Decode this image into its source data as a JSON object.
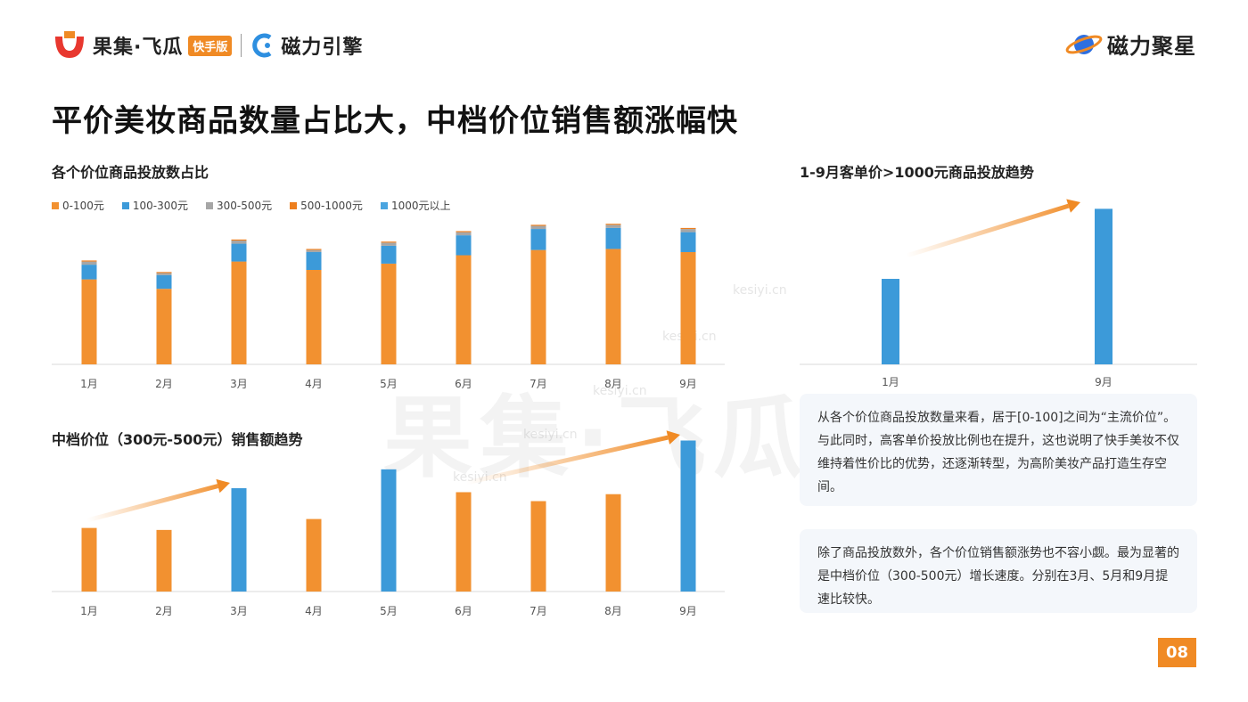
{
  "header": {
    "brand1": "果集·飞瓜",
    "brand1_tag": "快手版",
    "brand2": "磁力引擎",
    "brand3": "磁力聚星"
  },
  "title": "平价美妆商品数量占比大，中档价位销售额涨幅快",
  "watermark": {
    "big": "果集·飞瓜",
    "small": "kesiyi.cn"
  },
  "colors": {
    "orange": "#f29130",
    "blue": "#3c9ad9",
    "gray": "#a6a6a6",
    "orange2": "#ee7f1e",
    "blue2": "#4aa5e0"
  },
  "chart_data": [
    {
      "type": "bar",
      "title": "各个价位商品投放数占比",
      "stacked": true,
      "categories": [
        "1月",
        "2月",
        "3月",
        "4月",
        "5月",
        "6月",
        "7月",
        "8月",
        "9月"
      ],
      "series": [
        {
          "name": "0-100元",
          "color": "#f29130",
          "values": [
            81,
            72,
            98,
            90,
            96,
            104,
            109,
            110,
            107
          ]
        },
        {
          "name": "100-300元",
          "color": "#3c9ad9",
          "values": [
            14,
            13,
            17,
            17,
            17,
            19,
            20,
            20,
            19
          ]
        },
        {
          "name": "300-500元",
          "color": "#a6a6a6",
          "values": [
            3,
            2,
            3,
            2,
            3,
            3,
            3,
            3,
            3
          ]
        },
        {
          "name": "500-1000元",
          "color": "#ee7f1e",
          "values": [
            1,
            1,
            1,
            1,
            1,
            1,
            1,
            1,
            1
          ]
        },
        {
          "name": "1000元以上",
          "color": "#4aa5e0",
          "values": [
            0,
            0,
            0,
            0,
            0,
            0,
            0,
            0,
            0
          ]
        }
      ],
      "ylim": [
        0,
        135
      ],
      "grid": false,
      "legend": "top-left"
    },
    {
      "type": "bar",
      "title": "1-9月客单价>1000元商品投放趋势",
      "categories": [
        "1月",
        "9月"
      ],
      "values": [
        94,
        171
      ],
      "ylim": [
        0,
        190
      ],
      "bar_colors": [
        "#3c9ad9",
        "#3c9ad9"
      ],
      "annotation": "upward-trend-arrow"
    },
    {
      "type": "bar",
      "title": "中档价位（300元-500元）销售额趋势",
      "categories": [
        "1月",
        "2月",
        "3月",
        "4月",
        "5月",
        "6月",
        "7月",
        "8月",
        "9月"
      ],
      "values": [
        64,
        62,
        104,
        73,
        123,
        100,
        91,
        98,
        152
      ],
      "bar_colors": [
        "#f29130",
        "#f29130",
        "#3c9ad9",
        "#f29130",
        "#3c9ad9",
        "#f29130",
        "#f29130",
        "#f29130",
        "#3c9ad9"
      ],
      "ylim": [
        0,
        165
      ],
      "annotation": "two-upward-trend-arrows"
    }
  ],
  "text_boxes": [
    "从各个价位商品投放数量来看，居于[0-100]之间为“主流价位”。与此同时，高客单价投放比例也在提升，这也说明了快手美妆不仅维持着性价比的优势，还逐渐转型，为高阶美妆产品打造生存空间。",
    "除了商品投放数外，各个价位销售额涨势也不容小觑。最为显著的是中档价位（300-500元）增长速度。分别在3月、5月和9月提速比较快。"
  ],
  "page_number": "08"
}
